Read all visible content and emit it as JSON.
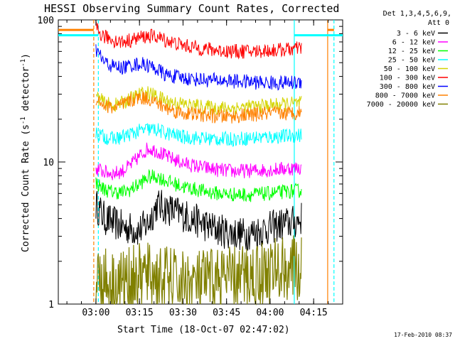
{
  "chart_data": {
    "type": "line",
    "title": "HESSI Observing Summary Count Rates, Corrected",
    "xlabel": "Start Time (18-Oct-07 02:47:02)",
    "ylabel_main": "Corrected Count Rate (s",
    "ylabel_sup1": "-1",
    "ylabel_mid": " detector",
    "ylabel_sup2": "-1",
    "ylabel_end": ")",
    "yscale": "log",
    "ylim": [
      1,
      100
    ],
    "xlim": [
      "02:47:02",
      "04:25:00"
    ],
    "x_ticks": [
      "03:00",
      "03:15",
      "03:30",
      "03:45",
      "04:00",
      "04:15"
    ],
    "y_ticks": [
      "1",
      "10",
      "100"
    ],
    "legend_header": [
      "Det 1,3,4,5,6,9,",
      "Att 0"
    ],
    "footer": "17-Feb-2010 08:37",
    "markers": [
      {
        "time": "02:59:15",
        "color": "#ff8000",
        "style": "dashed"
      },
      {
        "time": "03:00:50",
        "color": "#00ffff",
        "style": "dashed"
      },
      {
        "time": "04:08:20",
        "color": "#00ffff",
        "style": "solid"
      },
      {
        "time": "04:19:50",
        "color": "#ff8000",
        "style": "solid"
      },
      {
        "time": "04:22:00",
        "color": "#00ffff",
        "style": "dashed"
      }
    ],
    "series": [
      {
        "name": "3 - 6 keV",
        "color": "#000000",
        "points": [
          [
            3.0,
            5
          ],
          [
            3.05,
            4
          ],
          [
            3.15,
            3.5
          ],
          [
            3.25,
            3.3
          ],
          [
            3.3,
            3.7
          ],
          [
            3.35,
            5
          ],
          [
            3.45,
            4.5
          ],
          [
            3.55,
            4
          ],
          [
            3.65,
            3.5
          ],
          [
            3.75,
            3.2
          ],
          [
            3.85,
            3.1
          ],
          [
            3.95,
            3.3
          ],
          [
            4.05,
            3.6
          ],
          [
            4.15,
            3.8
          ],
          [
            4.18,
            4.0
          ]
        ]
      },
      {
        "name": "6 - 12 keV",
        "color": "#ff00ff",
        "points": [
          [
            3.0,
            9
          ],
          [
            3.05,
            8.5
          ],
          [
            3.1,
            8.3
          ],
          [
            3.15,
            8.6
          ],
          [
            3.2,
            9.5
          ],
          [
            3.25,
            11
          ],
          [
            3.3,
            12.5
          ],
          [
            3.35,
            12
          ],
          [
            3.4,
            11
          ],
          [
            3.5,
            9.8
          ],
          [
            3.6,
            9.2
          ],
          [
            3.7,
            8.8
          ],
          [
            3.8,
            8.6
          ],
          [
            3.9,
            8.7
          ],
          [
            4.0,
            8.8
          ],
          [
            4.1,
            9
          ],
          [
            4.18,
            9.1
          ]
        ]
      },
      {
        "name": "12 - 25 keV",
        "color": "#00ff00",
        "points": [
          [
            3.0,
            7.2
          ],
          [
            3.03,
            6.6
          ],
          [
            3.08,
            6.2
          ],
          [
            3.15,
            6.1
          ],
          [
            3.2,
            6.4
          ],
          [
            3.25,
            7.0
          ],
          [
            3.3,
            7.8
          ],
          [
            3.35,
            7.9
          ],
          [
            3.4,
            7.4
          ],
          [
            3.5,
            6.7
          ],
          [
            3.6,
            6.3
          ],
          [
            3.7,
            6.0
          ],
          [
            3.8,
            5.9
          ],
          [
            3.9,
            5.9
          ],
          [
            4.0,
            6.0
          ],
          [
            4.1,
            6.2
          ],
          [
            4.18,
            6.3
          ]
        ]
      },
      {
        "name": "25 - 50 keV",
        "color": "#00ffff",
        "points": [
          [
            3.0,
            16
          ],
          [
            3.05,
            15
          ],
          [
            3.1,
            14.5
          ],
          [
            3.15,
            15
          ],
          [
            3.2,
            15.8
          ],
          [
            3.25,
            16.5
          ],
          [
            3.3,
            17
          ],
          [
            3.35,
            16.8
          ],
          [
            3.4,
            16
          ],
          [
            3.5,
            15
          ],
          [
            3.6,
            14.7
          ],
          [
            3.7,
            14.5
          ],
          [
            3.8,
            14.5
          ],
          [
            3.9,
            14.8
          ],
          [
            4.0,
            15
          ],
          [
            4.1,
            15.2
          ],
          [
            4.18,
            15.5
          ]
        ]
      },
      {
        "name": "50 - 100 keV",
        "color": "#d4d400",
        "points": [
          [
            3.0,
            29
          ],
          [
            3.05,
            26
          ],
          [
            3.1,
            25
          ],
          [
            3.15,
            26
          ],
          [
            3.2,
            28
          ],
          [
            3.25,
            30
          ],
          [
            3.3,
            30.5
          ],
          [
            3.35,
            29
          ],
          [
            3.4,
            27
          ],
          [
            3.5,
            25.5
          ],
          [
            3.6,
            24.5
          ],
          [
            3.7,
            24
          ],
          [
            3.8,
            24
          ],
          [
            3.9,
            24.5
          ],
          [
            4.0,
            25
          ],
          [
            4.1,
            25.5
          ],
          [
            4.18,
            26
          ]
        ]
      },
      {
        "name": "100 - 300 keV",
        "color": "#ff0000",
        "points": [
          [
            3.0,
            88
          ],
          [
            3.03,
            78
          ],
          [
            3.1,
            72
          ],
          [
            3.15,
            70
          ],
          [
            3.2,
            72
          ],
          [
            3.25,
            75
          ],
          [
            3.3,
            77
          ],
          [
            3.35,
            76
          ],
          [
            3.4,
            72
          ],
          [
            3.5,
            66
          ],
          [
            3.6,
            63
          ],
          [
            3.7,
            61
          ],
          [
            3.8,
            60
          ],
          [
            3.9,
            60
          ],
          [
            4.0,
            61
          ],
          [
            4.1,
            62
          ],
          [
            4.18,
            63
          ]
        ]
      },
      {
        "name": "300 - 800 keV",
        "color": "#0000ff",
        "points": [
          [
            3.0,
            62
          ],
          [
            3.05,
            50
          ],
          [
            3.1,
            47
          ],
          [
            3.15,
            46
          ],
          [
            3.2,
            48
          ],
          [
            3.25,
            49
          ],
          [
            3.3,
            48
          ],
          [
            3.35,
            45
          ],
          [
            3.4,
            41
          ],
          [
            3.5,
            39
          ],
          [
            3.6,
            38
          ],
          [
            3.7,
            37.5
          ],
          [
            3.8,
            37
          ],
          [
            3.9,
            36.5
          ],
          [
            4.0,
            36
          ],
          [
            4.1,
            36
          ],
          [
            4.18,
            36.5
          ]
        ]
      },
      {
        "name": "800 - 7000 keV",
        "color": "#ff8000",
        "points": [
          [
            3.0,
            28
          ],
          [
            3.05,
            25
          ],
          [
            3.1,
            24
          ],
          [
            3.15,
            25
          ],
          [
            3.2,
            27
          ],
          [
            3.25,
            28.5
          ],
          [
            3.3,
            28
          ],
          [
            3.35,
            26
          ],
          [
            3.4,
            24
          ],
          [
            3.5,
            22
          ],
          [
            3.6,
            21.5
          ],
          [
            3.7,
            21
          ],
          [
            3.8,
            21
          ],
          [
            3.9,
            21.5
          ],
          [
            4.0,
            22
          ],
          [
            4.1,
            22
          ],
          [
            4.18,
            22.5
          ]
        ]
      },
      {
        "name": "7000 - 20000 keV",
        "color": "#808000",
        "points": [
          [
            3.0,
            1.6
          ],
          [
            3.1,
            1.4
          ],
          [
            3.2,
            1.5
          ],
          [
            3.3,
            1.6
          ],
          [
            3.4,
            1.5
          ],
          [
            3.5,
            1.4
          ],
          [
            3.6,
            1.4
          ],
          [
            3.7,
            1.5
          ],
          [
            3.8,
            1.5
          ],
          [
            3.9,
            1.6
          ],
          [
            4.0,
            1.7
          ],
          [
            4.1,
            1.8
          ],
          [
            4.18,
            1.7
          ]
        ]
      }
    ],
    "attenuator_segments": [
      {
        "color": "#ff8000",
        "from": "02:47:02",
        "to": "02:59:15",
        "level": 85
      },
      {
        "color": "#00ffff",
        "from": "02:47:02",
        "to": "03:00:50",
        "level": 78
      },
      {
        "color": "#00ffff",
        "from": "04:08:20",
        "to": "04:25:00",
        "level": 78
      },
      {
        "color": "#ff8000",
        "from": "04:19:50",
        "to": "04:22:00",
        "level": 85
      }
    ]
  }
}
